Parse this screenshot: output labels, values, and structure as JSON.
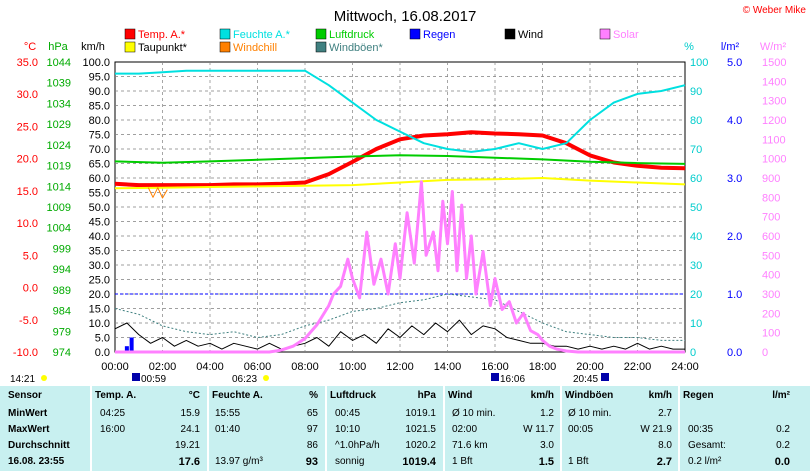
{
  "title": "Mittwoch, 16.08.2017",
  "copyright": "© Weber Mike",
  "legend": [
    {
      "label": "Temp. A.*",
      "color": "#ff0000"
    },
    {
      "label": "Feuchte A.*",
      "color": "#00e0e0"
    },
    {
      "label": "Luftdruck",
      "color": "#00cc00"
    },
    {
      "label": "Regen",
      "color": "#0000ff"
    },
    {
      "label": "Wind",
      "color": "#000000"
    },
    {
      "label": "Solar",
      "color": "#ff80ff"
    },
    {
      "label": "Taupunkt*",
      "color": "#ffff00"
    },
    {
      "label": "Windchill",
      "color": "#ff8000"
    },
    {
      "label": "Windböen*",
      "color": "#408080"
    }
  ],
  "axis_units": {
    "temp": "°C",
    "press": "hPa",
    "wind": "km/h",
    "hum": "%",
    "rain": "l/m²",
    "solar": "W/m²"
  },
  "chart_data": {
    "type": "line",
    "x_ticks": [
      "00:00",
      "02:00",
      "04:00",
      "06:00",
      "08:00",
      "10:00",
      "12:00",
      "14:00",
      "16:00",
      "18:00",
      "20:00",
      "22:00",
      "24:00"
    ],
    "temp_ticks": [
      "35.0",
      "30.0",
      "25.0",
      "20.0",
      "15.0",
      "10.0",
      "5.0",
      "0.0",
      "-5.0",
      "-10.0"
    ],
    "press_ticks": [
      "1044",
      "1039",
      "1034",
      "1029",
      "1024",
      "1019",
      "1014",
      "1009",
      "1004",
      "999",
      "994",
      "989",
      "984",
      "979",
      "974"
    ],
    "wind_ticks": [
      "100.0",
      "95.0",
      "90.0",
      "85.0",
      "80.0",
      "75.0",
      "70.0",
      "65.0",
      "60.0",
      "55.0",
      "50.0",
      "45.0",
      "40.0",
      "35.0",
      "30.0",
      "25.0",
      "20.0",
      "15.0",
      "10.0",
      "5.0",
      "0.0"
    ],
    "hum_ticks": [
      "100",
      "90",
      "80",
      "70",
      "60",
      "50",
      "40",
      "30",
      "20",
      "10",
      "0"
    ],
    "rain_ticks": [
      "5.0",
      "4.0",
      "3.0",
      "2.0",
      "1.0",
      "0.0"
    ],
    "solar_ticks": [
      "1500",
      "1400",
      "1300",
      "1200",
      "1100",
      "1000",
      "900",
      "800",
      "700",
      "600",
      "500",
      "400",
      "300",
      "200",
      "100",
      "0"
    ],
    "temp_range": [
      -10,
      35
    ],
    "hours_range": [
      0,
      24
    ],
    "series": [
      {
        "name": "Temp. A.*",
        "color": "#ff0000",
        "unit": "°C",
        "points": [
          [
            0,
            16.1
          ],
          [
            1,
            15.9
          ],
          [
            2,
            15.9
          ],
          [
            3,
            15.9
          ],
          [
            4,
            15.9
          ],
          [
            5,
            16.0
          ],
          [
            6,
            16.0
          ],
          [
            7,
            16.1
          ],
          [
            8,
            16.3
          ],
          [
            9,
            17.6
          ],
          [
            10,
            19.5
          ],
          [
            11,
            21.5
          ],
          [
            12,
            23.0
          ],
          [
            13,
            23.6
          ],
          [
            14,
            23.8
          ],
          [
            15,
            24.1
          ],
          [
            16,
            23.9
          ],
          [
            17,
            23.8
          ],
          [
            18,
            23.6
          ],
          [
            19,
            22.4
          ],
          [
            20,
            20.5
          ],
          [
            21,
            19.4
          ],
          [
            22,
            18.9
          ],
          [
            23,
            18.6
          ],
          [
            24,
            18.5
          ]
        ]
      },
      {
        "name": "Feuchte A.*",
        "color": "#00e0e0",
        "unit": "%",
        "points": [
          [
            0,
            96
          ],
          [
            1,
            96
          ],
          [
            2,
            96.5
          ],
          [
            3,
            97
          ],
          [
            4,
            97
          ],
          [
            5,
            97
          ],
          [
            6,
            97
          ],
          [
            7,
            97
          ],
          [
            8,
            97
          ],
          [
            9,
            92
          ],
          [
            10,
            86
          ],
          [
            11,
            80
          ],
          [
            12,
            76
          ],
          [
            13,
            72
          ],
          [
            14,
            70
          ],
          [
            15,
            69
          ],
          [
            16,
            70
          ],
          [
            17,
            72
          ],
          [
            18,
            70
          ],
          [
            19,
            72
          ],
          [
            20,
            80
          ],
          [
            21,
            86
          ],
          [
            22,
            89
          ],
          [
            23,
            90
          ],
          [
            24,
            92
          ]
        ]
      },
      {
        "name": "Luftdruck",
        "color": "#00cc00",
        "unit": "hPa",
        "points": [
          [
            0,
            1020.0
          ],
          [
            2,
            1019.7
          ],
          [
            4,
            1020.0
          ],
          [
            6,
            1020.4
          ],
          [
            8,
            1020.8
          ],
          [
            10,
            1021.2
          ],
          [
            12,
            1021.5
          ],
          [
            14,
            1021.3
          ],
          [
            16,
            1020.9
          ],
          [
            18,
            1020.5
          ],
          [
            20,
            1019.9
          ],
          [
            22,
            1019.6
          ],
          [
            24,
            1019.4
          ]
        ]
      },
      {
        "name": "Taupunkt*",
        "color": "#ffff00",
        "unit": "°C",
        "points": [
          [
            0,
            15.4
          ],
          [
            2,
            15.5
          ],
          [
            4,
            15.6
          ],
          [
            6,
            15.7
          ],
          [
            8,
            15.8
          ],
          [
            10,
            15.9
          ],
          [
            12,
            16.3
          ],
          [
            14,
            16.7
          ],
          [
            16,
            16.8
          ],
          [
            18,
            17.0
          ],
          [
            20,
            16.6
          ],
          [
            22,
            16.3
          ],
          [
            24,
            16.0
          ]
        ]
      },
      {
        "name": "Windchill",
        "color": "#ff8000",
        "unit": "°C",
        "points": [
          [
            1.4,
            15.5
          ],
          [
            1.6,
            14.0
          ],
          [
            1.8,
            15.5
          ],
          [
            2.0,
            13.9
          ],
          [
            2.2,
            15.2
          ]
        ]
      },
      {
        "name": "Windböen*",
        "color": "#408080",
        "unit": "km/h",
        "points": [
          [
            0,
            15
          ],
          [
            1,
            13
          ],
          [
            2,
            9
          ],
          [
            3,
            7
          ],
          [
            4,
            6
          ],
          [
            5,
            7
          ],
          [
            6,
            5
          ],
          [
            7,
            6
          ],
          [
            8,
            9
          ],
          [
            9,
            11
          ],
          [
            10,
            14
          ],
          [
            11,
            15
          ],
          [
            12,
            17
          ],
          [
            13,
            18
          ],
          [
            14,
            20
          ],
          [
            15,
            19
          ],
          [
            16,
            18
          ],
          [
            17,
            14
          ],
          [
            18,
            10
          ],
          [
            19,
            7
          ],
          [
            20,
            6
          ],
          [
            21,
            5
          ],
          [
            22,
            5
          ],
          [
            23,
            4
          ],
          [
            24,
            4
          ]
        ]
      },
      {
        "name": "Wind",
        "color": "#000000",
        "unit": "km/h",
        "points": [
          [
            0,
            8
          ],
          [
            0.5,
            10
          ],
          [
            1,
            6
          ],
          [
            1.5,
            3
          ],
          [
            2,
            5
          ],
          [
            2.5,
            2
          ],
          [
            3,
            4
          ],
          [
            3.5,
            2
          ],
          [
            4,
            3
          ],
          [
            4.5,
            1
          ],
          [
            5,
            3
          ],
          [
            5.5,
            2
          ],
          [
            6,
            1
          ],
          [
            6.5,
            3
          ],
          [
            7,
            1
          ],
          [
            7.5,
            2
          ],
          [
            8,
            3
          ],
          [
            8.5,
            5
          ],
          [
            9,
            2
          ],
          [
            9.5,
            7
          ],
          [
            10,
            4
          ],
          [
            10.5,
            6
          ],
          [
            11,
            3
          ],
          [
            11.5,
            8
          ],
          [
            12,
            5
          ],
          [
            12.5,
            9
          ],
          [
            13,
            6
          ],
          [
            13.5,
            10
          ],
          [
            14,
            7
          ],
          [
            14.5,
            11
          ],
          [
            15,
            6
          ],
          [
            15.5,
            9
          ],
          [
            16,
            8
          ],
          [
            16.5,
            5
          ],
          [
            17,
            4
          ],
          [
            17.5,
            3
          ],
          [
            18,
            3
          ],
          [
            18.5,
            2
          ],
          [
            19,
            2
          ],
          [
            19.5,
            1
          ],
          [
            20,
            2
          ],
          [
            20.5,
            1
          ],
          [
            21,
            2
          ],
          [
            21.5,
            1
          ],
          [
            22,
            3
          ],
          [
            22.5,
            1
          ],
          [
            23,
            2
          ],
          [
            23.5,
            1
          ],
          [
            24,
            1
          ]
        ]
      },
      {
        "name": "Solar",
        "color": "#ff80ff",
        "unit": "W/m²",
        "points": [
          [
            0,
            0
          ],
          [
            6.5,
            0
          ],
          [
            7,
            10
          ],
          [
            7.5,
            30
          ],
          [
            8,
            70
          ],
          [
            8.5,
            140
          ],
          [
            9,
            240
          ],
          [
            9.2,
            300
          ],
          [
            9.5,
            340
          ],
          [
            9.8,
            480
          ],
          [
            10,
            380
          ],
          [
            10.3,
            280
          ],
          [
            10.6,
            620
          ],
          [
            10.9,
            350
          ],
          [
            11.2,
            480
          ],
          [
            11.5,
            300
          ],
          [
            11.8,
            560
          ],
          [
            12,
            380
          ],
          [
            12.3,
            720
          ],
          [
            12.6,
            460
          ],
          [
            12.9,
            880
          ],
          [
            13.1,
            500
          ],
          [
            13.4,
            620
          ],
          [
            13.6,
            420
          ],
          [
            13.8,
            780
          ],
          [
            14,
            560
          ],
          [
            14.2,
            830
          ],
          [
            14.4,
            420
          ],
          [
            14.6,
            760
          ],
          [
            14.8,
            380
          ],
          [
            15,
            600
          ],
          [
            15.2,
            300
          ],
          [
            15.5,
            520
          ],
          [
            15.8,
            240
          ],
          [
            16,
            380
          ],
          [
            16.3,
            220
          ],
          [
            16.6,
            260
          ],
          [
            16.9,
            150
          ],
          [
            17.2,
            200
          ],
          [
            17.5,
            110
          ],
          [
            17.8,
            90
          ],
          [
            18,
            60
          ],
          [
            18.3,
            30
          ],
          [
            18.6,
            15
          ],
          [
            19,
            5
          ],
          [
            19.5,
            0
          ],
          [
            24,
            0
          ]
        ]
      }
    ],
    "rain_points": [
      [
        0.5,
        0.1
      ],
      [
        0.7,
        0.25
      ]
    ],
    "rain_line_value": 1.0
  },
  "bottom_labels": {
    "left_time": "14:21",
    "sunrise": "00:59",
    "t1": "06:23",
    "t2": "16:06",
    "t3": "20:45"
  },
  "table": {
    "headers": {
      "sensor": "Sensor",
      "temp": "Temp. A.",
      "temp_unit": "°C",
      "hum": "Feuchte A.",
      "hum_unit": "%",
      "press": "Luftdruck",
      "press_unit": "hPa",
      "wind": "Wind",
      "wind_unit": "km/h",
      "gust": "Windböen",
      "gust_unit": "km/h",
      "rain": "Regen",
      "rain_unit": "l/m²"
    },
    "rows": [
      {
        "label": "MinWert",
        "temp_time": "04:25",
        "temp": "15.9",
        "hum_time": "15:55",
        "hum": "65",
        "press_time": "00:45",
        "press": "1019.1",
        "wind_time": "Ø 10 min.",
        "wind": "1.2",
        "gust_time": "Ø 10 min.",
        "gust": "2.7",
        "rain_time": "",
        "rain": ""
      },
      {
        "label": "MaxWert",
        "temp_time": "16:00",
        "temp": "24.1",
        "hum_time": "01:40",
        "hum": "97",
        "press_time": "10:10",
        "press": "1021.5",
        "wind_time": "02:00",
        "wind": "W 11.7",
        "gust_time": "00:05",
        "gust": "W 21.9",
        "rain_time": "00:35",
        "rain": "0.2"
      },
      {
        "label": "Durchschnitt",
        "temp_time": "",
        "temp": "19.21",
        "hum_time": "",
        "hum": "86",
        "press_time": "^1.0hPa/h",
        "press": "1020.2",
        "wind_time": "71.6 km",
        "wind": "3.0",
        "gust_time": "",
        "gust": "8.0",
        "rain_time": "Gesamt:",
        "rain": "0.2"
      },
      {
        "label": "16.08. 23:55",
        "temp_time": "",
        "temp": "17.6",
        "hum_time": "13.97 g/m³",
        "hum": "93",
        "press_time": "sonnig",
        "press": "1019.4",
        "wind_time": "1 Bft",
        "wind": "1.5",
        "gust_time": "1 Bft",
        "gust": "2.7",
        "rain_time": "0.2 l/m²",
        "rain": "0.0"
      }
    ]
  }
}
